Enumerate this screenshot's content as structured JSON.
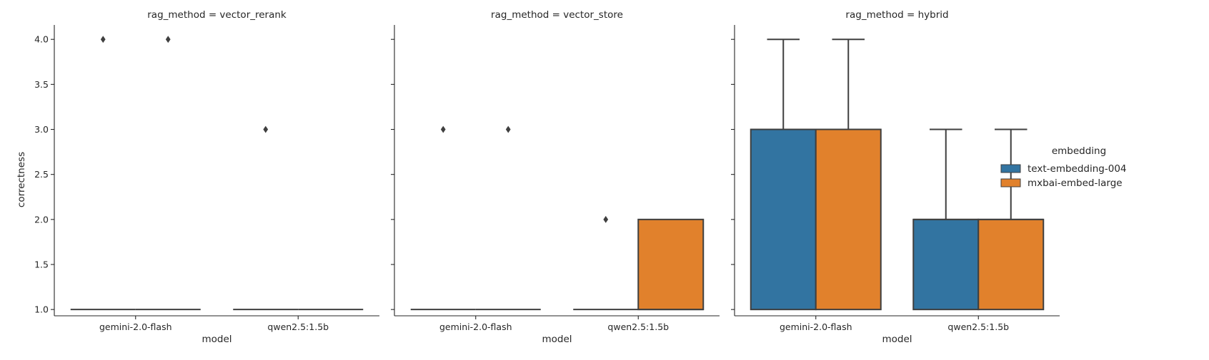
{
  "chart_data": {
    "type": "box",
    "ylabel": "correctness",
    "xlabel": "model",
    "ylim": [
      0.93,
      4.16
    ],
    "yticks": [
      1.0,
      1.5,
      2.0,
      2.5,
      3.0,
      3.5,
      4.0
    ],
    "ytick_labels": [
      "1.0",
      "1.5",
      "2.0",
      "2.5",
      "3.0",
      "3.5",
      "4.0"
    ],
    "categories": [
      "gemini-2.0-flash",
      "qwen2.5:1.5b"
    ],
    "legend": {
      "title": "embedding",
      "placement": "right",
      "entries": [
        {
          "name": "text-embedding-004",
          "color": "#3274a1"
        },
        {
          "name": "mxbai-embed-large",
          "color": "#e1812c"
        }
      ]
    },
    "panels": [
      {
        "title": "rag_method = vector_rerank",
        "boxes": [
          {
            "category": "gemini-2.0-flash",
            "hue": "text-embedding-004",
            "min": 1,
            "q1": 1,
            "median": 1,
            "q3": 1,
            "max": 1,
            "outliers": [
              4
            ]
          },
          {
            "category": "gemini-2.0-flash",
            "hue": "mxbai-embed-large",
            "min": 1,
            "q1": 1,
            "median": 1,
            "q3": 1,
            "max": 1,
            "outliers": [
              4
            ]
          },
          {
            "category": "qwen2.5:1.5b",
            "hue": "text-embedding-004",
            "min": 1,
            "q1": 1,
            "median": 1,
            "q3": 1,
            "max": 1,
            "outliers": [
              3
            ]
          },
          {
            "category": "qwen2.5:1.5b",
            "hue": "mxbai-embed-large",
            "min": 1,
            "q1": 1,
            "median": 1,
            "q3": 1,
            "max": 1,
            "outliers": []
          }
        ]
      },
      {
        "title": "rag_method = vector_store",
        "boxes": [
          {
            "category": "gemini-2.0-flash",
            "hue": "text-embedding-004",
            "min": 1,
            "q1": 1,
            "median": 1,
            "q3": 1,
            "max": 1,
            "outliers": [
              3
            ]
          },
          {
            "category": "gemini-2.0-flash",
            "hue": "mxbai-embed-large",
            "min": 1,
            "q1": 1,
            "median": 1,
            "q3": 1,
            "max": 1,
            "outliers": [
              3
            ]
          },
          {
            "category": "qwen2.5:1.5b",
            "hue": "text-embedding-004",
            "min": 1,
            "q1": 1,
            "median": 1,
            "q3": 1,
            "max": 1,
            "outliers": [
              2
            ]
          },
          {
            "category": "qwen2.5:1.5b",
            "hue": "mxbai-embed-large",
            "min": 1,
            "q1": 1,
            "median": 1,
            "q3": 2,
            "max": 2,
            "outliers": []
          }
        ]
      },
      {
        "title": "rag_method = hybrid",
        "boxes": [
          {
            "category": "gemini-2.0-flash",
            "hue": "text-embedding-004",
            "min": 1,
            "q1": 1,
            "median": 3,
            "q3": 3,
            "max": 4,
            "outliers": []
          },
          {
            "category": "gemini-2.0-flash",
            "hue": "mxbai-embed-large",
            "min": 1,
            "q1": 1,
            "median": 3,
            "q3": 3,
            "max": 4,
            "outliers": []
          },
          {
            "category": "qwen2.5:1.5b",
            "hue": "text-embedding-004",
            "min": 1,
            "q1": 1,
            "median": 2,
            "q3": 2,
            "max": 3,
            "outliers": []
          },
          {
            "category": "qwen2.5:1.5b",
            "hue": "mxbai-embed-large",
            "min": 1,
            "q1": 1,
            "median": 2,
            "q3": 2,
            "max": 3,
            "outliers": []
          }
        ]
      }
    ]
  }
}
